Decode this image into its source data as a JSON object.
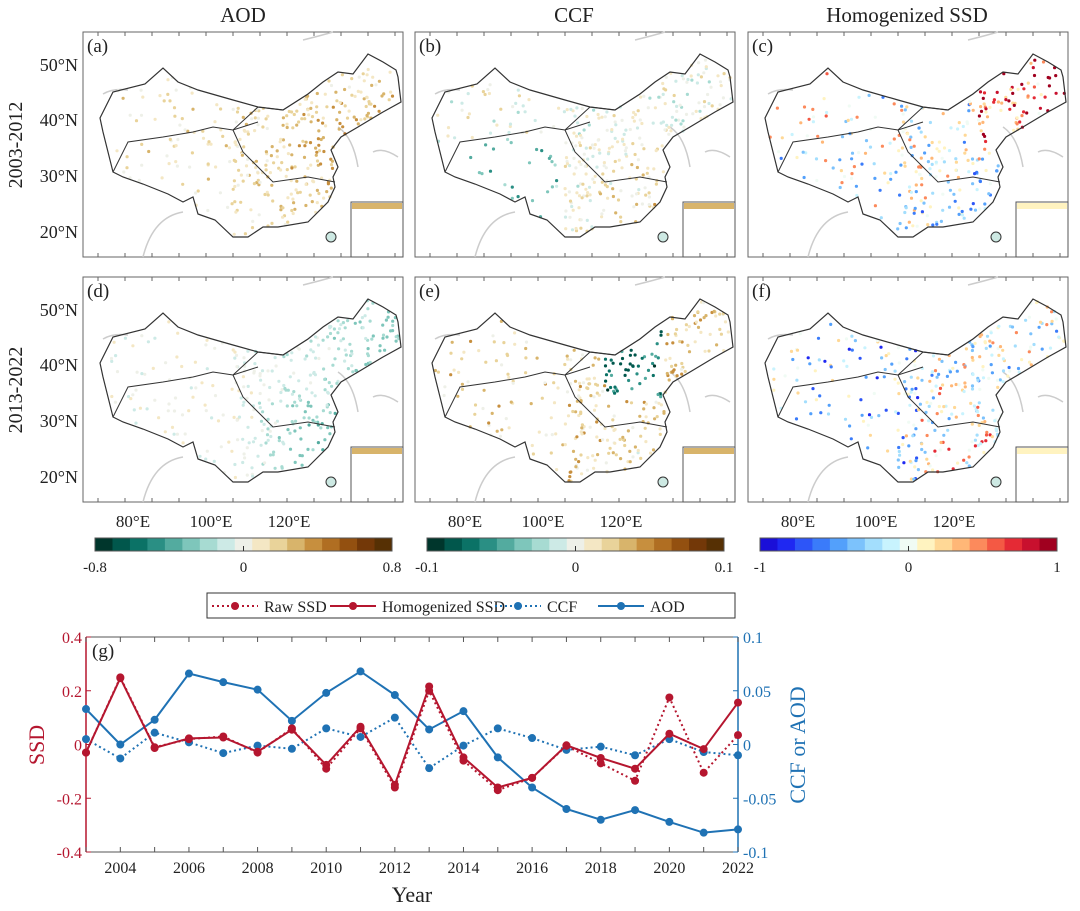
{
  "maps": {
    "column_titles": [
      "AOD",
      "CCF",
      "Homogenized SSD"
    ],
    "row_labels": [
      "2003-2012",
      "2013-2022"
    ],
    "panel_labels": [
      "(a)",
      "(b)",
      "(c)",
      "(d)",
      "(e)",
      "(f)"
    ],
    "lat_labels": [
      "50°N",
      "40°N",
      "30°N",
      "20°N"
    ],
    "lon_labels": [
      "80°E",
      "100°E",
      "120°E"
    ],
    "colorbars": [
      {
        "variable": "AOD",
        "min_label": "-0.8",
        "mid_label": "0",
        "max_label": "0.8",
        "colors": [
          "#00362c",
          "#01574c",
          "#0b7266",
          "#2a8f84",
          "#53ab9f",
          "#7ec6bb",
          "#a7dbd2",
          "#cdeae6",
          "#eef0e8",
          "#f4e7c4",
          "#e9d39a",
          "#d8b46b",
          "#c78f3e",
          "#b06e22",
          "#935010",
          "#733808",
          "#563004"
        ]
      },
      {
        "variable": "CCF",
        "min_label": "-0.1",
        "mid_label": "0",
        "max_label": "0.1",
        "colors": [
          "#00362c",
          "#01574c",
          "#0b7266",
          "#2a8f84",
          "#53ab9f",
          "#7ec6bb",
          "#a7dbd2",
          "#cdeae6",
          "#eef0e8",
          "#f4e7c4",
          "#e9d39a",
          "#d8b46b",
          "#c78f3e",
          "#b06e22",
          "#935010",
          "#733808",
          "#563004"
        ]
      },
      {
        "variable": "Homogenized SSD",
        "min_label": "-1",
        "mid_label": "0",
        "max_label": "1",
        "colors": [
          "#1a0fd8",
          "#1f28f2",
          "#2d55f8",
          "#3a7bfa",
          "#53a0fb",
          "#7cc2fc",
          "#a3defd",
          "#c8f3fe",
          "#f0fbf4",
          "#fff3c0",
          "#ffd896",
          "#ffb777",
          "#fc8a5c",
          "#f45944",
          "#e52a35",
          "#c8102e",
          "#a0001f"
        ]
      }
    ]
  },
  "chart_data": {
    "type": "line",
    "panel_label": "(g)",
    "xlabel": "Year",
    "ylabel_left": "SSD",
    "ylabel_right": "CCF or AOD",
    "ylim_left": [
      -0.4,
      0.4
    ],
    "ylim_right": [
      -0.1,
      0.1
    ],
    "xlim": [
      2003,
      2022
    ],
    "x_tick_labels": [
      "2004",
      "2006",
      "2008",
      "2010",
      "2012",
      "2014",
      "2016",
      "2018",
      "2020",
      "2022"
    ],
    "y_left_tick_labels": [
      "0.4",
      "0.2",
      "0",
      "-0.2",
      "-0.4"
    ],
    "y_right_tick_labels": [
      "0.1",
      "0.05",
      "0",
      "-0.05",
      "-0.1"
    ],
    "legend_position": "top",
    "colors": {
      "ssd": "#b5162f",
      "ccf_aod": "#1f72b4"
    },
    "x": [
      2003,
      2004,
      2005,
      2006,
      2007,
      2008,
      2009,
      2010,
      2011,
      2012,
      2013,
      2014,
      2015,
      2016,
      2017,
      2018,
      2019,
      2020,
      2021,
      2022
    ],
    "series": [
      {
        "name": "Raw SSD",
        "axis": "left",
        "style": "dotted",
        "color": "#b5162f",
        "values": [
          -0.03,
          0.25,
          -0.01,
          0.02,
          0.03,
          -0.03,
          0.06,
          -0.09,
          0.06,
          -0.16,
          0.2,
          -0.06,
          -0.17,
          -0.124,
          -0.005,
          -0.07,
          -0.135,
          0.175,
          -0.105,
          0.035
        ]
      },
      {
        "name": "Homogenized SSD",
        "axis": "left",
        "style": "solid",
        "color": "#b5162f",
        "values": [
          -0.03,
          0.247,
          -0.013,
          0.023,
          0.026,
          -0.027,
          0.055,
          -0.076,
          0.066,
          -0.15,
          0.216,
          -0.048,
          -0.16,
          -0.124,
          -0.003,
          -0.05,
          -0.09,
          0.04,
          -0.017,
          0.156
        ]
      },
      {
        "name": "CCF",
        "axis": "right",
        "style": "dotted",
        "color": "#1f72b4",
        "values": [
          0.005,
          -0.013,
          0.011,
          0.002,
          -0.008,
          -0.001,
          -0.004,
          0.015,
          0.007,
          0.025,
          -0.022,
          -0.001,
          0.015,
          0.006,
          -0.005,
          -0.002,
          -0.01,
          0.005,
          -0.007,
          -0.01
        ]
      },
      {
        "name": "AOD",
        "axis": "right",
        "style": "solid",
        "color": "#1f72b4",
        "values": [
          0.033,
          0.0,
          0.023,
          0.066,
          0.058,
          0.051,
          0.022,
          0.048,
          0.068,
          0.046,
          0.014,
          0.031,
          -0.012,
          -0.04,
          -0.06,
          -0.07,
          -0.061,
          -0.072,
          -0.082,
          -0.079
        ]
      }
    ]
  }
}
